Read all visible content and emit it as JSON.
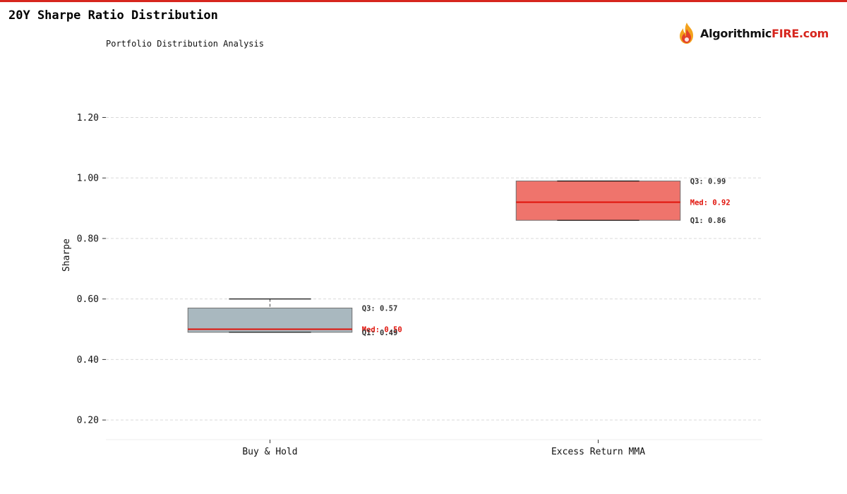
{
  "page": {
    "title": "20Y Sharpe Ratio Distribution",
    "subtitle": "Portfolio Distribution Analysis"
  },
  "brand": {
    "logo_text_main": "Algorithmic",
    "logo_text_accent": "FIRE.com",
    "accent_color": "#d7261e",
    "icon": "flame-icon"
  },
  "chart_data": {
    "type": "boxplot",
    "title": "20Y Sharpe Ratio Distribution",
    "subtitle": "Portfolio Distribution Analysis",
    "xlabel": "",
    "ylabel": "Sharpe",
    "ylim": [
      0.135,
      1.355
    ],
    "yticks": [
      0.2,
      0.4,
      0.6,
      0.8,
      1.0,
      1.2
    ],
    "ytick_labels": [
      "0.20",
      "0.40",
      "0.60",
      "0.80",
      "1.00",
      "1.20"
    ],
    "grid": true,
    "categories": [
      "Buy & Hold",
      "Excess Return MMA"
    ],
    "series": [
      {
        "whisker_low": 0.49,
        "q1": 0.49,
        "median": 0.5,
        "q3": 0.57,
        "whisker_high": 0.6,
        "fill": "#a9b8bf",
        "annotations": {
          "q3": "Q3: 0.57",
          "median": "Med: 0.50",
          "q1": "Q1: 0.49"
        }
      },
      {
        "whisker_low": 0.86,
        "q1": 0.86,
        "median": 0.92,
        "q3": 0.99,
        "whisker_high": 0.99,
        "fill": "#ef746c",
        "annotations": {
          "q3": "Q3: 0.99",
          "median": "Med: 0.92",
          "q1": "Q1: 0.86"
        }
      }
    ],
    "median_color": "#e0120a"
  }
}
